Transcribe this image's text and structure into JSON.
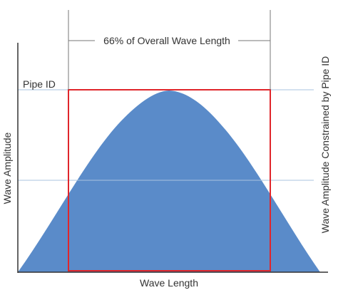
{
  "labels": {
    "span": "66% of Overall Wave Length",
    "pipe_id": "Pipe ID",
    "y_axis": "Wave Amplitude",
    "x_axis": "Wave Length",
    "right_side": "Wave Amplitude Constrained by Pipe ID"
  },
  "colors": {
    "wave_fill": "#5a8bc9",
    "constraint_box": "#e0262b",
    "guide_lines": "#a9c3df",
    "axes": "#333333",
    "text": "#333333"
  }
}
